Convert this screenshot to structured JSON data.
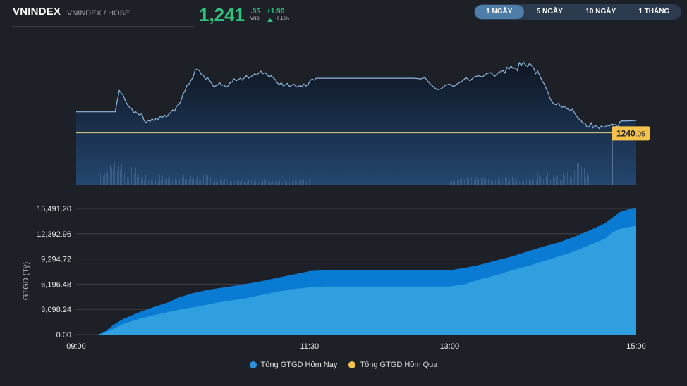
{
  "header": {
    "title": "VNINDEX",
    "subtitle": "VNINDEX / HOSE",
    "price_int": "1,241",
    "price_dec": ".95",
    "currency": "VND",
    "change": "+1.90",
    "change_pct": "0.15%",
    "up_color": "#2ec27e"
  },
  "tabs": [
    {
      "label": "1 NGÀY",
      "active": true
    },
    {
      "label": "5 NGÀY",
      "active": false
    },
    {
      "label": "10 NGÀY",
      "active": false
    },
    {
      "label": "1 THÁNG",
      "active": false
    }
  ],
  "price_chart": {
    "type": "line",
    "ref_label_int": "1240",
    "ref_label_dec": ".05",
    "ref_value": 1240.05,
    "ylim": [
      1232.0,
      1253.0
    ],
    "line_color": "#8fb8dd",
    "ref_line_color": "#c9c07a",
    "series": [
      [
        0,
        1243.3
      ],
      [
        20,
        1243.3
      ],
      [
        30,
        1243.3
      ],
      [
        38,
        1243.3
      ],
      [
        40,
        1245
      ],
      [
        42,
        1246.6
      ],
      [
        44,
        1246.2
      ],
      [
        46,
        1245.8
      ],
      [
        48,
        1245
      ],
      [
        50,
        1244.4
      ],
      [
        52,
        1244
      ],
      [
        54,
        1243.8
      ],
      [
        56,
        1243.2
      ],
      [
        58,
        1243.3
      ],
      [
        60,
        1243
      ],
      [
        62,
        1242.8
      ],
      [
        64,
        1243
      ],
      [
        66,
        1242
      ],
      [
        68,
        1241.6
      ],
      [
        70,
        1242
      ],
      [
        72,
        1241.8
      ],
      [
        74,
        1242.2
      ],
      [
        76,
        1241.9
      ],
      [
        78,
        1242.3
      ],
      [
        80,
        1242.1
      ],
      [
        82,
        1242.6
      ],
      [
        84,
        1242.4
      ],
      [
        86,
        1242.8
      ],
      [
        88,
        1242.5
      ],
      [
        90,
        1242.9
      ],
      [
        92,
        1243.2
      ],
      [
        94,
        1243.6
      ],
      [
        96,
        1243.4
      ],
      [
        98,
        1244.2
      ],
      [
        100,
        1244.4
      ],
      [
        102,
        1244.9
      ],
      [
        104,
        1246
      ],
      [
        106,
        1246.5
      ],
      [
        108,
        1247.4
      ],
      [
        110,
        1247.6
      ],
      [
        112,
        1248.2
      ],
      [
        114,
        1248.7
      ],
      [
        116,
        1249.8
      ],
      [
        118,
        1249.9
      ],
      [
        120,
        1249.7
      ],
      [
        122,
        1249.1
      ],
      [
        124,
        1249
      ],
      [
        126,
        1248.3
      ],
      [
        128,
        1248.6
      ],
      [
        130,
        1248.2
      ],
      [
        132,
        1247.7
      ],
      [
        134,
        1247.2
      ],
      [
        136,
        1247.3
      ],
      [
        138,
        1247.5
      ],
      [
        140,
        1247.8
      ],
      [
        142,
        1247.4
      ],
      [
        144,
        1247.5
      ],
      [
        146,
        1247.1
      ],
      [
        148,
        1247.3
      ],
      [
        150,
        1247.8
      ],
      [
        152,
        1247.9
      ],
      [
        154,
        1248.4
      ],
      [
        156,
        1248.1
      ],
      [
        158,
        1248.3
      ],
      [
        160,
        1248.5
      ],
      [
        162,
        1248.2
      ],
      [
        164,
        1248.6
      ],
      [
        166,
        1248.9
      ],
      [
        168,
        1248.5
      ],
      [
        170,
        1248.7
      ],
      [
        172,
        1248.9
      ],
      [
        174,
        1249.2
      ],
      [
        176,
        1249.0
      ],
      [
        178,
        1249.3
      ],
      [
        180,
        1249.6
      ],
      [
        182,
        1249.2
      ],
      [
        184,
        1249.4
      ],
      [
        186,
        1249.1
      ],
      [
        188,
        1248.7
      ],
      [
        190,
        1248.9
      ],
      [
        192,
        1248.6
      ],
      [
        194,
        1248.3
      ],
      [
        196,
        1247.8
      ],
      [
        198,
        1247.5
      ],
      [
        200,
        1247.8
      ],
      [
        202,
        1247.3
      ],
      [
        204,
        1247.5
      ],
      [
        206,
        1247.7
      ],
      [
        208,
        1247.2
      ],
      [
        210,
        1247.4
      ],
      [
        212,
        1247.6
      ],
      [
        214,
        1247.3
      ],
      [
        216,
        1247.1
      ],
      [
        218,
        1247.4
      ],
      [
        220,
        1247.2
      ],
      [
        222,
        1247.6
      ],
      [
        224,
        1247.3
      ],
      [
        226,
        1247.5
      ],
      [
        228,
        1248.1
      ],
      [
        230,
        1248.4
      ],
      [
        232,
        1248.2
      ],
      [
        234,
        1248.5
      ],
      [
        330,
        1248.5
      ],
      [
        336,
        1248.4
      ],
      [
        340,
        1248.6
      ],
      [
        344,
        1247.8
      ],
      [
        348,
        1247.2
      ],
      [
        352,
        1246.7
      ],
      [
        356,
        1246.9
      ],
      [
        360,
        1247.4
      ],
      [
        364,
        1247.6
      ],
      [
        368,
        1247.2
      ],
      [
        372,
        1247.7
      ],
      [
        376,
        1248.0
      ],
      [
        380,
        1248.6
      ],
      [
        384,
        1248.1
      ],
      [
        388,
        1248.7
      ],
      [
        392,
        1248.9
      ],
      [
        396,
        1248.7
      ],
      [
        400,
        1249.2
      ],
      [
        404,
        1249.4
      ],
      [
        408,
        1248.8
      ],
      [
        412,
        1249.4
      ],
      [
        416,
        1249.7
      ],
      [
        418,
        1249.3
      ],
      [
        420,
        1250.2
      ],
      [
        422,
        1249.9
      ],
      [
        424,
        1250.4
      ],
      [
        426,
        1250.0
      ],
      [
        428,
        1250.1
      ],
      [
        430,
        1249.7
      ],
      [
        432,
        1250.9
      ],
      [
        434,
        1250.5
      ],
      [
        436,
        1251.0
      ],
      [
        438,
        1250.6
      ],
      [
        440,
        1250.3
      ],
      [
        442,
        1250.8
      ],
      [
        444,
        1250.5
      ],
      [
        446,
        1250.1
      ],
      [
        448,
        1249.2
      ],
      [
        450,
        1249.6
      ],
      [
        452,
        1248.9
      ],
      [
        454,
        1248.2
      ],
      [
        456,
        1247.7
      ],
      [
        458,
        1247.0
      ],
      [
        460,
        1246.3
      ],
      [
        462,
        1245.4
      ],
      [
        464,
        1244.8
      ],
      [
        466,
        1244.5
      ],
      [
        468,
        1244.4
      ],
      [
        470,
        1244.6
      ],
      [
        472,
        1244.2
      ],
      [
        474,
        1244.0
      ],
      [
        476,
        1244.2
      ],
      [
        478,
        1243.8
      ],
      [
        480,
        1243.7
      ],
      [
        482,
        1243.5
      ],
      [
        484,
        1243.7
      ],
      [
        486,
        1243.1
      ],
      [
        488,
        1242.6
      ],
      [
        490,
        1242.2
      ],
      [
        492,
        1242.0
      ],
      [
        494,
        1241.5
      ],
      [
        496,
        1241.6
      ],
      [
        498,
        1240.9
      ],
      [
        500,
        1241.0
      ],
      [
        502,
        1241.6
      ],
      [
        504,
        1240.8
      ],
      [
        506,
        1241.2
      ],
      [
        508,
        1241.0
      ],
      [
        510,
        1240.7
      ],
      [
        512,
        1241.1
      ],
      [
        514,
        1240.9
      ],
      [
        516,
        1241.0
      ],
      [
        518,
        1241.2
      ],
      [
        520,
        1241.1
      ],
      [
        522,
        1241.4
      ],
      [
        524,
        1241.3
      ],
      [
        526,
        1241.3
      ],
      [
        528,
        1240.9
      ],
      [
        530,
        1241.7
      ],
      [
        532,
        1241.9
      ],
      [
        534,
        1241.85
      ],
      [
        546,
        1241.95
      ]
    ]
  },
  "turnover_chart": {
    "type": "area",
    "ylabel": "GTGD (Tỷ)",
    "ylim": [
      0,
      15491.2
    ],
    "yticks": [
      "0.00",
      "3,098.24",
      "6,196.48",
      "9,294.72",
      "12,392.96",
      "15,491.20"
    ],
    "ytick_values": [
      0,
      3098.24,
      6196.48,
      9294.72,
      12392.96,
      15491.2
    ],
    "xticks": [
      "09:00",
      "11:30",
      "13:00",
      "15:00"
    ],
    "xtick_positions": [
      0,
      150,
      240,
      360
    ],
    "xlim": [
      0,
      360
    ],
    "series": [
      {
        "name": "Tổng GTGD Hôm Nay",
        "color": "#2a8fdc",
        "points": [
          [
            0,
            0
          ],
          [
            14,
            0
          ],
          [
            18,
            300
          ],
          [
            24,
            1200
          ],
          [
            30,
            1900
          ],
          [
            40,
            2700
          ],
          [
            50,
            3400
          ],
          [
            60,
            4000
          ],
          [
            65,
            4500
          ],
          [
            75,
            5100
          ],
          [
            85,
            5500
          ],
          [
            95,
            5800
          ],
          [
            105,
            6100
          ],
          [
            115,
            6400
          ],
          [
            125,
            6800
          ],
          [
            135,
            7200
          ],
          [
            145,
            7600
          ],
          [
            150,
            7800
          ],
          [
            160,
            7900
          ],
          [
            240,
            7900
          ],
          [
            250,
            8200
          ],
          [
            260,
            8600
          ],
          [
            270,
            9100
          ],
          [
            280,
            9600
          ],
          [
            290,
            10200
          ],
          [
            300,
            10800
          ],
          [
            310,
            11300
          ],
          [
            320,
            12000
          ],
          [
            330,
            12800
          ],
          [
            340,
            13700
          ],
          [
            345,
            14400
          ],
          [
            350,
            15100
          ],
          [
            355,
            15400
          ],
          [
            360,
            15491
          ]
        ]
      },
      {
        "name": "Tổng GTGD Hôm Qua",
        "color": "#f5c24c",
        "points": [
          [
            0,
            0
          ],
          [
            14,
            0
          ],
          [
            18,
            200
          ],
          [
            24,
            700
          ],
          [
            30,
            1300
          ],
          [
            40,
            1900
          ],
          [
            50,
            2400
          ],
          [
            60,
            2800
          ],
          [
            70,
            3200
          ],
          [
            80,
            3500
          ],
          [
            90,
            3900
          ],
          [
            100,
            4200
          ],
          [
            110,
            4500
          ],
          [
            120,
            4900
          ],
          [
            130,
            5300
          ],
          [
            140,
            5600
          ],
          [
            150,
            5800
          ],
          [
            160,
            5900
          ],
          [
            240,
            5900
          ],
          [
            250,
            6200
          ],
          [
            260,
            6800
          ],
          [
            270,
            7300
          ],
          [
            280,
            7900
          ],
          [
            290,
            8400
          ],
          [
            300,
            9000
          ],
          [
            310,
            9600
          ],
          [
            320,
            10200
          ],
          [
            330,
            11000
          ],
          [
            340,
            11800
          ],
          [
            345,
            12600
          ],
          [
            350,
            13000
          ],
          [
            360,
            13400
          ]
        ]
      }
    ]
  }
}
